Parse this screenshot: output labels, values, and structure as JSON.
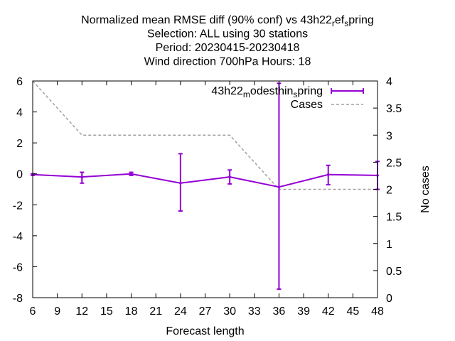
{
  "chart_data": {
    "type": "line",
    "title_lines": [
      "Normalized mean RMSE diff (90% conf) vs 43h22_ref_spring",
      "Selection: ALL using    30 stations",
      "Period: 20230415-20230418",
      "Wind direction 700hPa   Hours:  18"
    ],
    "xlabel": "Forecast length",
    "ylabel": "",
    "y2label": "No cases",
    "xlim": [
      6,
      48
    ],
    "ylim": [
      -8,
      6
    ],
    "y2lim": [
      0,
      4
    ],
    "xticks": [
      6,
      9,
      12,
      15,
      18,
      21,
      24,
      27,
      30,
      33,
      36,
      39,
      42,
      45,
      48
    ],
    "yticks": [
      -8,
      -6,
      -4,
      -2,
      0,
      2,
      4,
      6
    ],
    "y2ticks": [
      "0",
      "0.5",
      "1",
      "1.5",
      "2",
      "2.5",
      "3",
      "3.5",
      "4"
    ],
    "grid": false,
    "legend_position": "top-right",
    "series": [
      {
        "name": "43h22_modesthin_spring",
        "color": "#9400d3",
        "axis": "y",
        "x": [
          6,
          12,
          18,
          24,
          30,
          36,
          42,
          48
        ],
        "values": [
          -0.05,
          -0.2,
          0.0,
          -0.6,
          -0.2,
          -0.85,
          -0.05,
          -0.1
        ],
        "err_low": [
          -0.1,
          -0.6,
          -0.1,
          -2.4,
          -0.65,
          -7.45,
          -0.7,
          -1.0
        ],
        "err_high": [
          0.0,
          0.1,
          0.1,
          1.3,
          0.25,
          5.85,
          0.55,
          0.8
        ]
      },
      {
        "name": "Cases",
        "color": "#a0a0a0",
        "axis": "y2",
        "x": [
          6,
          12,
          18,
          24,
          30,
          36,
          42,
          48
        ],
        "values": [
          4,
          3,
          3,
          3,
          3,
          2,
          2,
          2
        ]
      }
    ]
  }
}
